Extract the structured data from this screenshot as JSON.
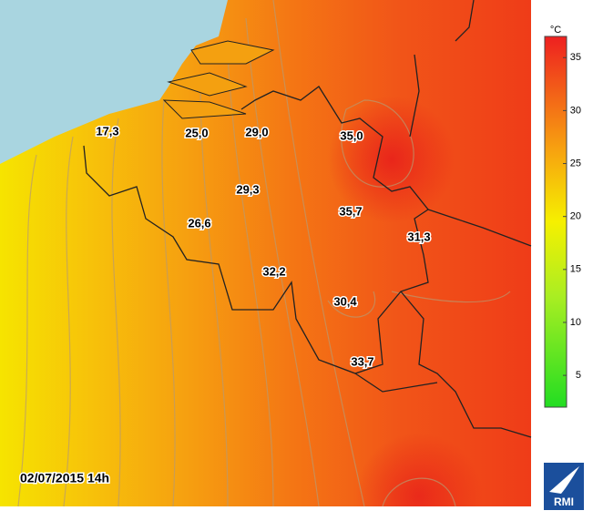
{
  "map": {
    "timestamp": "02/07/2015 14h",
    "stations": [
      "17,3",
      "25,0",
      "29,0",
      "35,0",
      "29,3",
      "35,7",
      "26,6",
      "31,3",
      "32,2",
      "30,4",
      "33,7"
    ],
    "colorbar": {
      "unit": "°C",
      "range": [
        2,
        37
      ],
      "ticks": [
        5,
        10,
        15,
        20,
        25,
        30,
        35
      ]
    },
    "logo": "RMI"
  }
}
